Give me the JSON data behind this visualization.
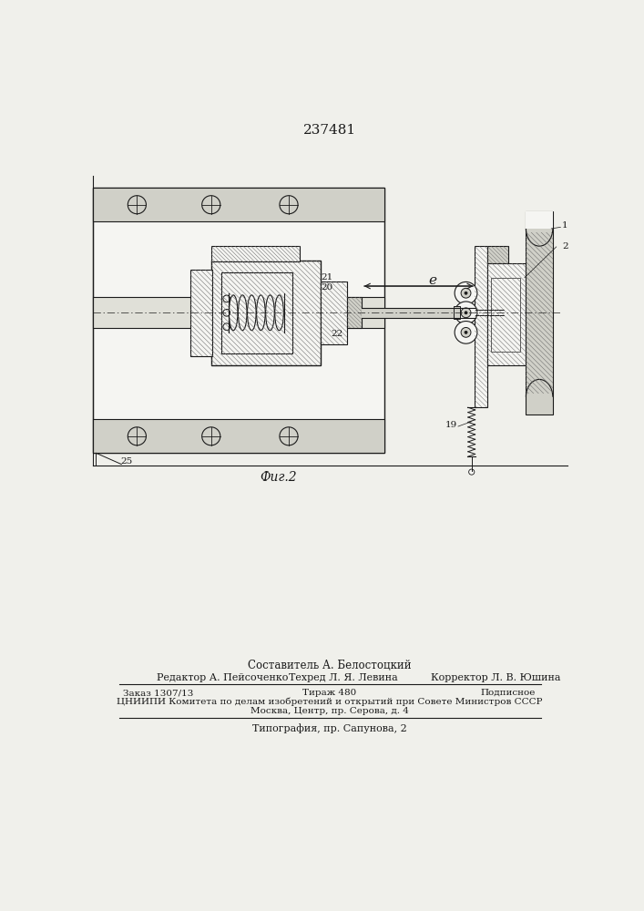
{
  "patent_number": "237481",
  "fig_label": "Фиг.2",
  "footer_line1_composer": "Составитель А. Белостоцкий",
  "footer_line2_editor": "Редактор А. Пейсоченко",
  "footer_line2_techred": "Техред Л. Я. Левина",
  "footer_line2_corrector": "Корректор Л. В. Юшина",
  "footer_line3_order": "Заказ 1307/13",
  "footer_line3_tirazh": "Тираж 480",
  "footer_line3_podpis": "Подписное",
  "footer_line4": "ЦНИИПИ Комитета по делам изобретений и открытий при Совете Министров СССР",
  "footer_line5": "Москва, Центр, пр. Серова, д. 4",
  "footer_line6": "Типография, пр. Сапунова, 2",
  "bg_color": "#f0f0eb",
  "line_color": "#1a1a1a",
  "hatch_color": "#333333",
  "fill_light": "#e8e8e2",
  "fill_medium": "#d0d0c8",
  "fill_dark": "#b8b8b0",
  "fill_white": "#f5f5f2"
}
